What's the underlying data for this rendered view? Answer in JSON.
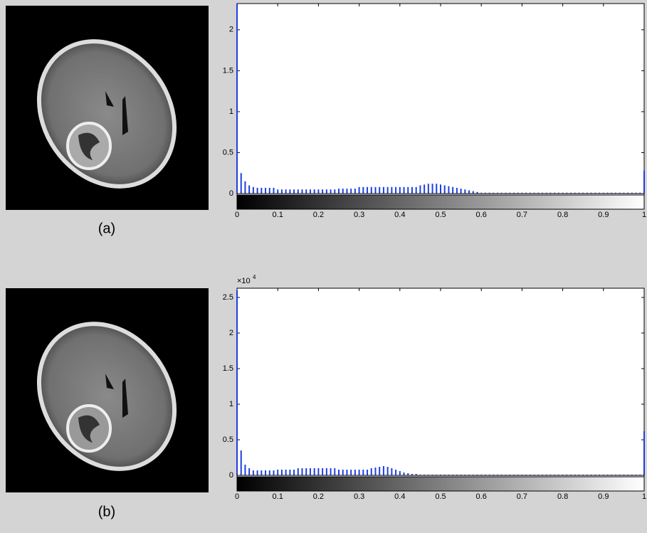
{
  "chart_data": [
    {
      "type": "bar",
      "caption": "(a)",
      "color": "#1f3fe0",
      "x": [
        0,
        0.01,
        0.02,
        0.03,
        0.04,
        0.05,
        0.06,
        0.07,
        0.08,
        0.09,
        0.1,
        0.11,
        0.12,
        0.13,
        0.14,
        0.15,
        0.16,
        0.17,
        0.18,
        0.19,
        0.2,
        0.21,
        0.22,
        0.23,
        0.24,
        0.25,
        0.26,
        0.27,
        0.28,
        0.29,
        0.3,
        0.31,
        0.32,
        0.33,
        0.34,
        0.35,
        0.36,
        0.37,
        0.38,
        0.39,
        0.4,
        0.41,
        0.42,
        0.43,
        0.44,
        0.45,
        0.46,
        0.47,
        0.48,
        0.49,
        0.5,
        0.51,
        0.52,
        0.53,
        0.54,
        0.55,
        0.56,
        0.57,
        0.58,
        0.59,
        0.6,
        0.61,
        0.62,
        0.63,
        0.64,
        0.65,
        0.66,
        0.67,
        0.68,
        0.69,
        0.7,
        0.71,
        0.72,
        0.73,
        0.74,
        0.75,
        0.76,
        0.77,
        0.78,
        0.79,
        0.8,
        0.81,
        0.82,
        0.83,
        0.84,
        0.85,
        0.86,
        0.87,
        0.88,
        0.89,
        0.9,
        0.91,
        0.92,
        0.93,
        0.94,
        0.95,
        0.96,
        0.97,
        0.98,
        0.99,
        1
      ],
      "values": [
        2.32,
        0.25,
        0.15,
        0.1,
        0.08,
        0.07,
        0.07,
        0.07,
        0.07,
        0.07,
        0.05,
        0.05,
        0.05,
        0.05,
        0.05,
        0.05,
        0.05,
        0.05,
        0.05,
        0.05,
        0.05,
        0.05,
        0.05,
        0.05,
        0.05,
        0.06,
        0.06,
        0.06,
        0.06,
        0.06,
        0.08,
        0.08,
        0.08,
        0.08,
        0.08,
        0.08,
        0.08,
        0.08,
        0.08,
        0.08,
        0.08,
        0.08,
        0.08,
        0.08,
        0.08,
        0.1,
        0.11,
        0.12,
        0.12,
        0.12,
        0.11,
        0.1,
        0.09,
        0.08,
        0.07,
        0.06,
        0.05,
        0.04,
        0.03,
        0.02,
        0.01,
        0.01,
        0.01,
        0.01,
        0.01,
        0.01,
        0.01,
        0.01,
        0.01,
        0.01,
        0.01,
        0.01,
        0.01,
        0.01,
        0.01,
        0.01,
        0.01,
        0.01,
        0.01,
        0.01,
        0.01,
        0.01,
        0.01,
        0.01,
        0.01,
        0.01,
        0.01,
        0.01,
        0.01,
        0.01,
        0.01,
        0.01,
        0.01,
        0.01,
        0.01,
        0.01,
        0.01,
        0.01,
        0.01,
        0.01,
        0.28
      ],
      "xlim": [
        0,
        1
      ],
      "ylim": [
        0,
        2.32
      ],
      "xticks": [
        0,
        0.1,
        0.2,
        0.3,
        0.4,
        0.5,
        0.6,
        0.7,
        0.8,
        0.9,
        1
      ],
      "yticks": [
        0,
        0.5,
        1,
        1.5,
        2
      ]
    },
    {
      "type": "bar",
      "caption": "(b)",
      "color": "#1f3fe0",
      "y_multiplier": "×10",
      "y_exponent": "4",
      "x": [
        0,
        0.01,
        0.02,
        0.03,
        0.04,
        0.05,
        0.06,
        0.07,
        0.08,
        0.09,
        0.1,
        0.11,
        0.12,
        0.13,
        0.14,
        0.15,
        0.16,
        0.17,
        0.18,
        0.19,
        0.2,
        0.21,
        0.22,
        0.23,
        0.24,
        0.25,
        0.26,
        0.27,
        0.28,
        0.29,
        0.3,
        0.31,
        0.32,
        0.33,
        0.34,
        0.35,
        0.36,
        0.37,
        0.38,
        0.39,
        0.4,
        0.41,
        0.42,
        0.43,
        0.44,
        0.45,
        0.46,
        0.47,
        0.48,
        0.49,
        0.5,
        0.51,
        0.52,
        0.53,
        0.54,
        0.55,
        0.56,
        0.57,
        0.58,
        0.59,
        0.6,
        0.61,
        0.62,
        0.63,
        0.64,
        0.65,
        0.66,
        0.67,
        0.68,
        0.69,
        0.7,
        0.71,
        0.72,
        0.73,
        0.74,
        0.75,
        0.76,
        0.77,
        0.78,
        0.79,
        0.8,
        0.81,
        0.82,
        0.83,
        0.84,
        0.85,
        0.86,
        0.87,
        0.88,
        0.89,
        0.9,
        0.91,
        0.92,
        0.93,
        0.94,
        0.95,
        0.96,
        0.97,
        0.98,
        0.99,
        1
      ],
      "values": [
        2.6,
        0.35,
        0.15,
        0.1,
        0.07,
        0.07,
        0.07,
        0.07,
        0.07,
        0.07,
        0.08,
        0.08,
        0.08,
        0.08,
        0.08,
        0.1,
        0.1,
        0.1,
        0.1,
        0.1,
        0.1,
        0.1,
        0.1,
        0.1,
        0.1,
        0.08,
        0.08,
        0.08,
        0.08,
        0.08,
        0.08,
        0.08,
        0.08,
        0.1,
        0.11,
        0.12,
        0.13,
        0.12,
        0.1,
        0.08,
        0.06,
        0.04,
        0.03,
        0.02,
        0.02,
        0.01,
        0.01,
        0.01,
        0.01,
        0.01,
        0.01,
        0.01,
        0.01,
        0.01,
        0.01,
        0.01,
        0.01,
        0.01,
        0.01,
        0.01,
        0.01,
        0.01,
        0.01,
        0.01,
        0.01,
        0.01,
        0.01,
        0.01,
        0.01,
        0.01,
        0.01,
        0.01,
        0.01,
        0.01,
        0.01,
        0.01,
        0.01,
        0.01,
        0.01,
        0.01,
        0.01,
        0.01,
        0.01,
        0.01,
        0.01,
        0.01,
        0.01,
        0.01,
        0.01,
        0.01,
        0.01,
        0.01,
        0.01,
        0.01,
        0.01,
        0.01,
        0.01,
        0.01,
        0.01,
        0.01,
        0.62
      ],
      "xlim": [
        0,
        1
      ],
      "ylim": [
        0,
        2.63
      ],
      "xticks": [
        0,
        0.1,
        0.2,
        0.3,
        0.4,
        0.5,
        0.6,
        0.7,
        0.8,
        0.9,
        1
      ],
      "yticks": [
        0,
        0.5,
        1,
        1.5,
        2,
        2.5
      ]
    }
  ]
}
